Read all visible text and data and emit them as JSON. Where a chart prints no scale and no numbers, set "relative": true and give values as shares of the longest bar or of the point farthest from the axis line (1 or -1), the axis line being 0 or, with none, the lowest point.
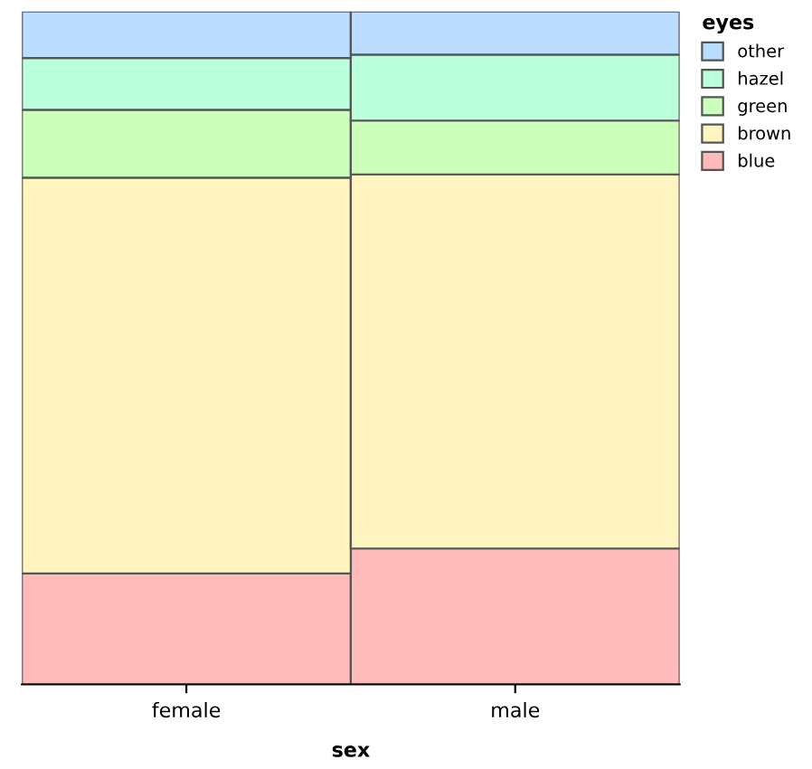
{
  "chart_data": {
    "type": "bar",
    "stacked": true,
    "relative": true,
    "xlabel": "sex",
    "legend_title": "eyes",
    "legend": "top right",
    "grid": false,
    "categories": [
      "female",
      "male"
    ],
    "series": [
      {
        "name": "blue",
        "color": "#ffbbbb",
        "values": [
          0.165,
          0.202
        ]
      },
      {
        "name": "brown",
        "color": "#fff5c0",
        "values": [
          0.588,
          0.556
        ]
      },
      {
        "name": "green",
        "color": "#ccffbb",
        "values": [
          0.101,
          0.08
        ]
      },
      {
        "name": "hazel",
        "color": "#bbffdd",
        "values": [
          0.077,
          0.098
        ]
      },
      {
        "name": "other",
        "color": "#bbddff",
        "values": [
          0.069,
          0.064
        ]
      }
    ]
  }
}
